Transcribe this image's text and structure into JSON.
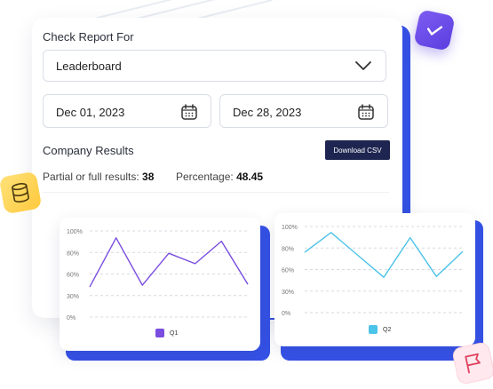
{
  "report": {
    "check_label": "Check Report For",
    "report_type": "Leaderboard",
    "start_date": "Dec 01, 2023",
    "end_date": "Dec 28, 2023"
  },
  "results": {
    "title": "Company Results",
    "download_label": "Download CSV",
    "partial_label": "Partial or full results:",
    "partial_value": "38",
    "percentage_label": "Percentage:",
    "percentage_value": "48.45"
  },
  "colors": {
    "accent_blue": "#3552e8",
    "button_navy": "#1e2550",
    "q1_purple": "#7a4de0",
    "q2_cyan": "#4cc3e8"
  },
  "icons": [
    "chevron-down-icon",
    "calendar-icon",
    "check-icon",
    "database-icon",
    "flag-icon"
  ],
  "chart_data": [
    {
      "type": "line",
      "title": "",
      "xlabel": "",
      "ylabel": "",
      "y_ticks": [
        "100%",
        "80%",
        "60%",
        "30%",
        "0%"
      ],
      "ylim": [
        0,
        100
      ],
      "grid": true,
      "legend": "bottom-center",
      "series": [
        {
          "name": "Q1",
          "color": "#7a4de0",
          "values": [
            35,
            92,
            37,
            74,
            62,
            88,
            38
          ]
        }
      ]
    },
    {
      "type": "line",
      "title": "",
      "xlabel": "",
      "ylabel": "",
      "y_ticks": [
        "100%",
        "80%",
        "60%",
        "30%",
        "0%"
      ],
      "ylim": [
        0,
        100
      ],
      "grid": true,
      "legend": "bottom-center",
      "series": [
        {
          "name": "Q2",
          "color": "#4cc3e8",
          "values": [
            70,
            93,
            67,
            41,
            87,
            42,
            71
          ]
        }
      ]
    }
  ]
}
